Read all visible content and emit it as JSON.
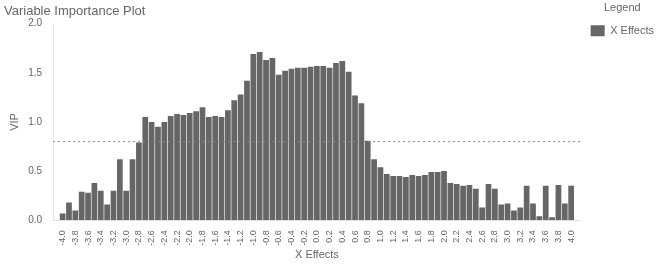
{
  "chart_data": {
    "type": "bar",
    "title": "Variable Importance Plot",
    "x_label": "X Effects",
    "y_label": "VIP",
    "x": [
      -4.0,
      -3.9,
      -3.8,
      -3.7,
      -3.6,
      -3.5,
      -3.4,
      -3.3,
      -3.2,
      -3.1,
      -3.0,
      -2.9,
      -2.8,
      -2.7,
      -2.6,
      -2.5,
      -2.4,
      -2.3,
      -2.2,
      -2.1,
      -2.0,
      -1.9,
      -1.8,
      -1.7,
      -1.6,
      -1.5,
      -1.4,
      -1.3,
      -1.2,
      -1.1,
      -1.0,
      -0.9,
      -0.8,
      -0.7,
      -0.6,
      -0.5,
      -0.4,
      -0.3,
      -0.2,
      -0.1,
      0.0,
      0.1,
      0.2,
      0.3,
      0.4,
      0.5,
      0.6,
      0.7,
      0.8,
      0.9,
      1.0,
      1.1,
      1.2,
      1.3,
      1.4,
      1.5,
      1.6,
      1.7,
      1.8,
      1.9,
      2.0,
      2.1,
      2.2,
      2.3,
      2.4,
      2.5,
      2.6,
      2.7,
      2.8,
      2.9,
      3.0,
      3.1,
      3.2,
      3.3,
      3.4,
      3.5,
      3.6,
      3.7,
      3.8,
      3.9,
      4.0
    ],
    "series": [
      {
        "name": "X Effects",
        "color": "#666666",
        "values": [
          0.07,
          0.18,
          0.1,
          0.29,
          0.28,
          0.38,
          0.3,
          0.16,
          0.3,
          0.62,
          0.3,
          0.62,
          0.79,
          1.05,
          1.0,
          0.95,
          1.0,
          1.06,
          1.08,
          1.07,
          1.09,
          1.11,
          1.15,
          1.05,
          1.06,
          1.05,
          1.12,
          1.22,
          1.28,
          1.42,
          1.69,
          1.71,
          1.63,
          1.65,
          1.48,
          1.52,
          1.54,
          1.55,
          1.55,
          1.56,
          1.57,
          1.57,
          1.55,
          1.6,
          1.62,
          1.51,
          1.27,
          1.19,
          0.81,
          0.62,
          0.54,
          0.47,
          0.45,
          0.45,
          0.44,
          0.46,
          0.45,
          0.46,
          0.49,
          0.49,
          0.5,
          0.38,
          0.37,
          0.35,
          0.36,
          0.32,
          0.13,
          0.37,
          0.32,
          0.16,
          0.17,
          0.1,
          0.13,
          0.35,
          0.17,
          0.04,
          0.35,
          0.03,
          0.36,
          0.17,
          0.35
        ]
      }
    ],
    "reference_lines": [
      {
        "y": 0.8,
        "color": "#888888",
        "line_style": "dotted"
      }
    ],
    "xlim": [
      -4.15,
      4.15
    ],
    "xticks": [
      {
        "value": -4.0,
        "label": "-4.0"
      },
      -3.8,
      -3.6,
      -3.4,
      -3.2,
      {
        "value": -3.0,
        "label": "-3.0"
      },
      -2.8,
      -2.6,
      -2.4,
      -2.2,
      {
        "value": -2.0,
        "label": "-2.0"
      },
      -1.8,
      -1.6,
      -1.4,
      -1.2,
      {
        "value": -1.0,
        "label": "-1.0"
      },
      -0.8,
      -0.6,
      -0.4,
      -0.2,
      {
        "value": 0.0,
        "label": "0.0"
      },
      0.2,
      0.4,
      0.6,
      0.8,
      {
        "value": 1.0,
        "label": "1.0"
      },
      1.2,
      1.4,
      1.6,
      1.8,
      {
        "value": 2.0,
        "label": "2.0"
      },
      2.2,
      2.4,
      2.6,
      2.8,
      {
        "value": 3.0,
        "label": "3.0"
      },
      3.2,
      3.4,
      3.6,
      3.8,
      {
        "value": 4.0,
        "label": "4.0"
      }
    ],
    "ylim": [
      0.0,
      2.0
    ],
    "yticks": [
      {
        "value": 0.0,
        "label": "0.0"
      },
      0.5,
      {
        "value": 1.0,
        "label": "1.0"
      },
      1.5,
      {
        "value": 2.0,
        "label": "2.0"
      }
    ],
    "grid": false,
    "legend": "right",
    "legend_title": "Legend"
  }
}
